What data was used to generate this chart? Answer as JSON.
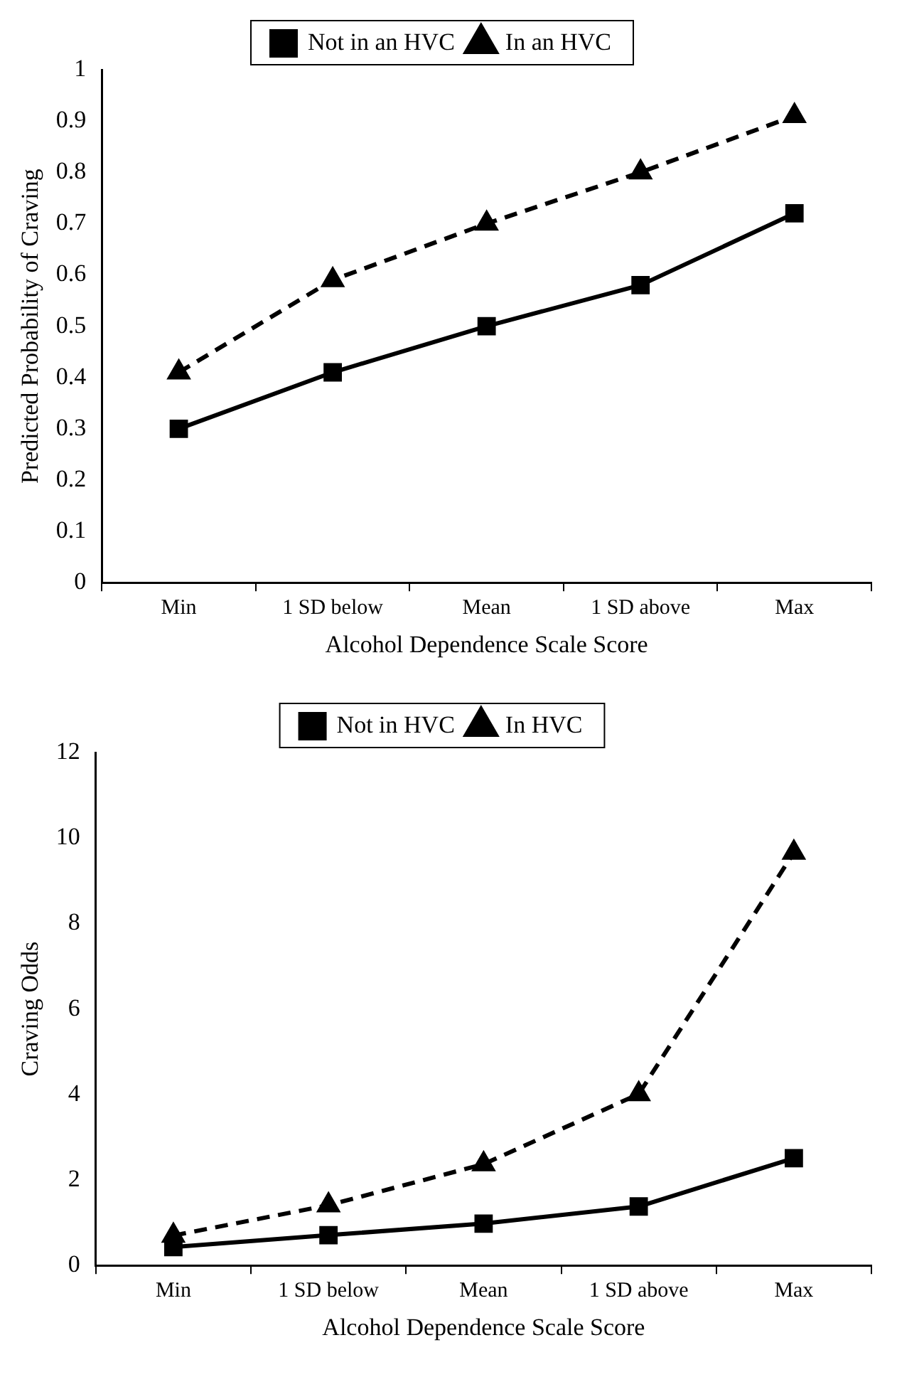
{
  "chart_data": [
    {
      "type": "line",
      "xlabel": "Alcohol Dependence Scale Score",
      "ylabel": "Predicted Probability of Craving",
      "categories": [
        "Min",
        "1 SD below",
        "Mean",
        "1 SD above",
        "Max"
      ],
      "series": [
        {
          "name": "Not in an HVC",
          "color": "#000000",
          "marker": "square",
          "line_style": "solid",
          "values": [
            0.3,
            0.41,
            0.5,
            0.58,
            0.72
          ]
        },
        {
          "name": "In an HVC",
          "color": "#000000",
          "marker": "triangle",
          "line_style": "dashed",
          "values": [
            0.41,
            0.59,
            0.7,
            0.8,
            0.91
          ]
        }
      ],
      "ylim": [
        0,
        1
      ],
      "yticks": [
        0,
        0.1,
        0.2,
        0.3,
        0.4,
        0.5,
        0.6,
        0.7,
        0.8,
        0.9,
        1
      ],
      "grid": false,
      "legend": "top"
    },
    {
      "type": "line",
      "xlabel": "Alcohol Dependence Scale Score",
      "ylabel": "Craving Odds",
      "categories": [
        "Min",
        "1 SD below",
        "Mean",
        "1 SD above",
        "Max"
      ],
      "series": [
        {
          "name": "Not in HVC",
          "color": "#000000",
          "marker": "square",
          "line_style": "solid",
          "values": [
            0.43,
            0.71,
            0.98,
            1.38,
            2.51
          ]
        },
        {
          "name": "In HVC",
          "color": "#000000",
          "marker": "triangle",
          "line_style": "dashed",
          "values": [
            0.7,
            1.41,
            2.37,
            4.01,
            9.66
          ]
        }
      ],
      "ylim": [
        0,
        12
      ],
      "yticks": [
        0,
        2,
        4,
        6,
        8,
        10,
        12
      ],
      "grid": false,
      "legend": "top"
    }
  ]
}
